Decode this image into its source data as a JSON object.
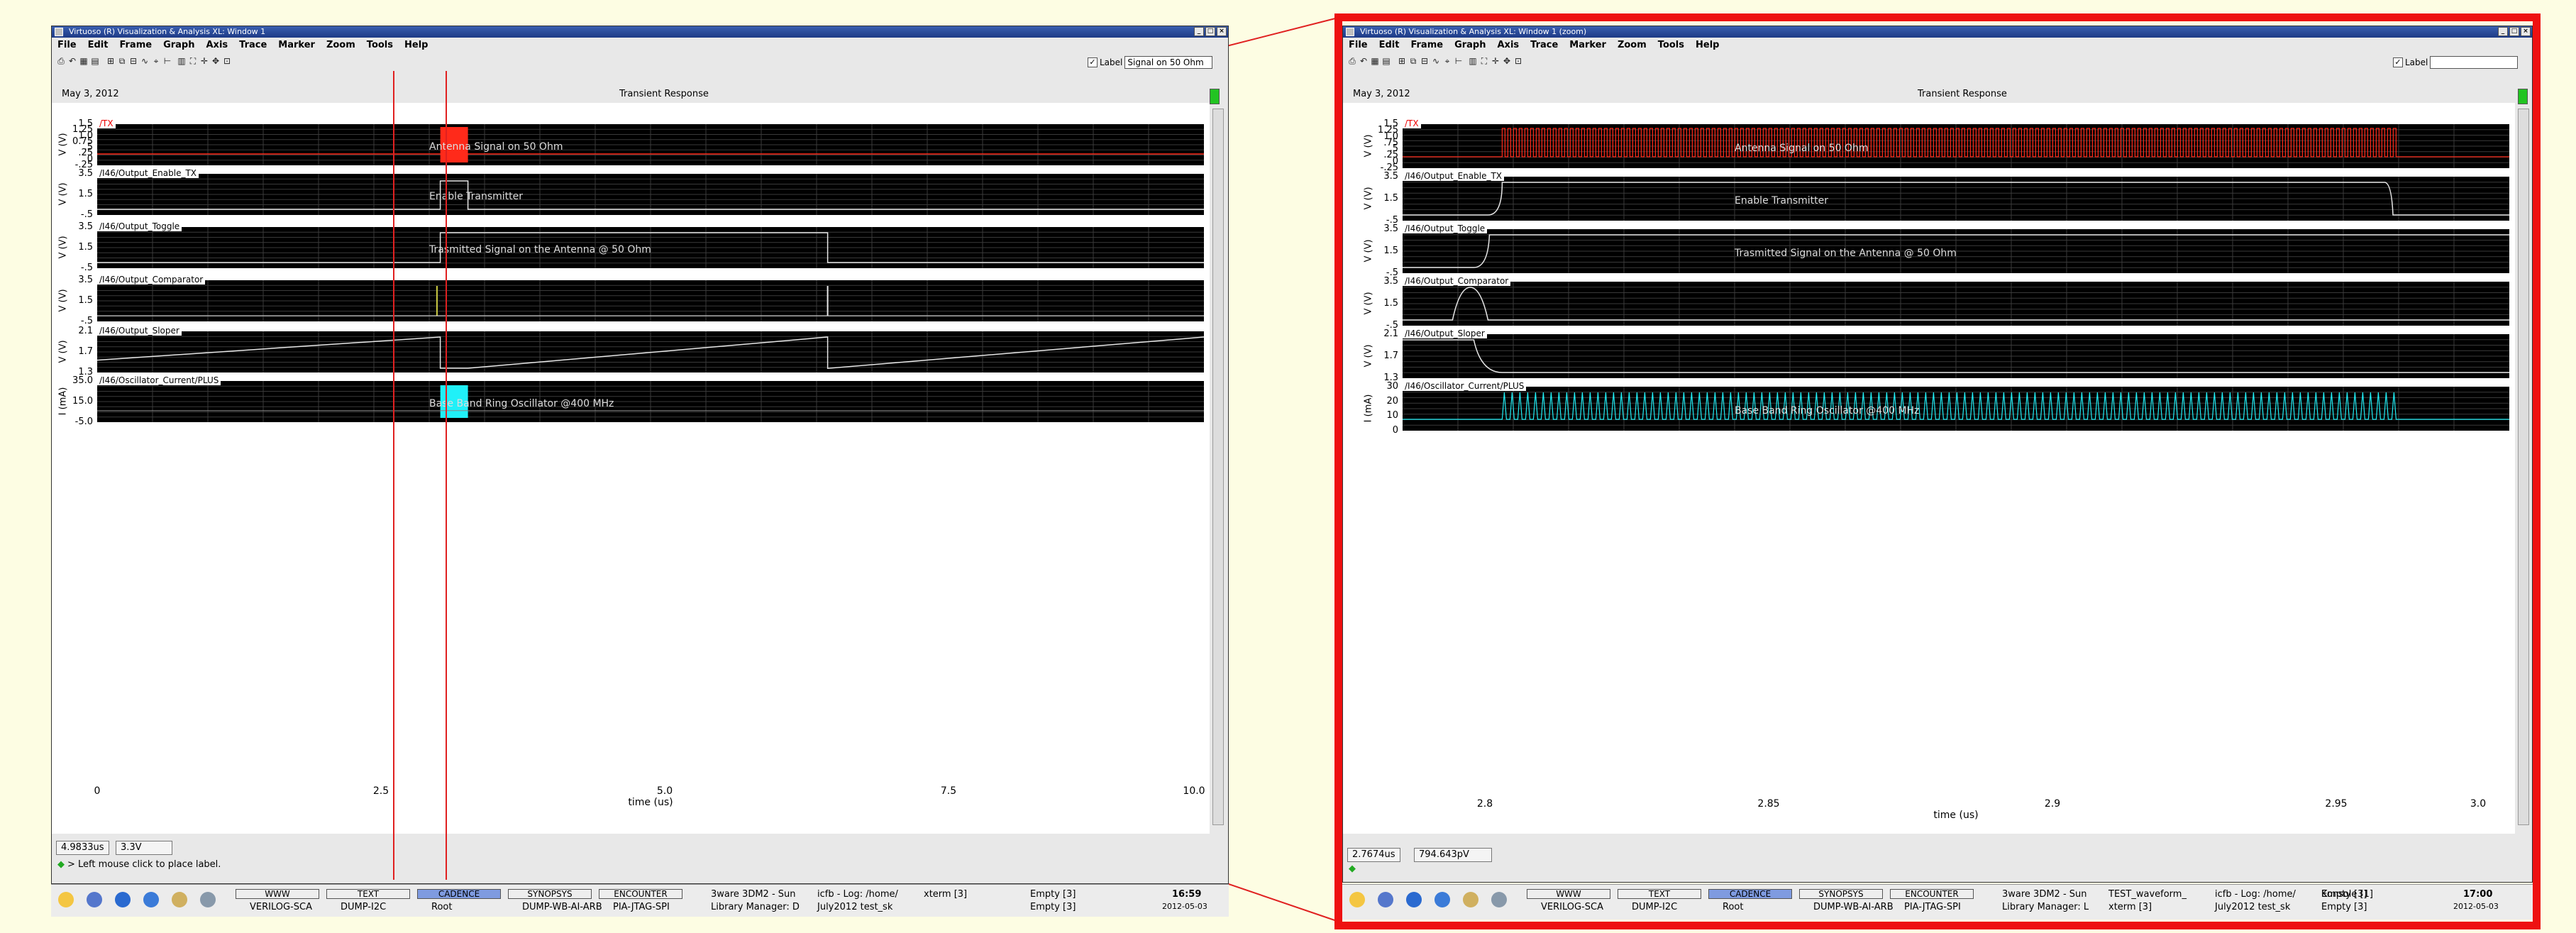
{
  "colors": {
    "page_bg": "#fdfde3",
    "red_frame": "#ee1111",
    "plot_bg": "#000000",
    "antenna": "#ff2a1a",
    "osc": "#20f0f8",
    "trace_white": "#e8e8e8"
  },
  "windows": [
    {
      "title": "Virtuoso (R) Visualization & Analysis XL: Window 1",
      "menu": [
        "File",
        "Edit",
        "Frame",
        "Graph",
        "Axis",
        "Trace",
        "Marker",
        "Zoom",
        "Tools",
        "Help"
      ],
      "label_option": "Label",
      "label_value": "Signal on 50 Ohm",
      "date": "May 3, 2012",
      "plot_title": "Transient Response",
      "panels": [
        {
          "tag": "/TX",
          "y_ticks": [
            "1.5",
            "1.25",
            "1.0",
            "0.75",
            ".5",
            ".25",
            "0",
            "-.25"
          ],
          "y_label": "V (V)",
          "annotation": "Antenna Signal on 50 Ohm"
        },
        {
          "tag": "/I46/Output_Enable_TX",
          "y_ticks": [
            "3.5",
            "1.5",
            "-.5"
          ],
          "y_label": "V (V)",
          "annotation": "Enable Transmitter"
        },
        {
          "tag": "/I46/Output_Toggle",
          "y_ticks": [
            "3.5",
            "1.5",
            "-.5"
          ],
          "y_label": "V (V)",
          "annotation": "Trasmitted Signal on the Antenna @ 50 Ohm"
        },
        {
          "tag": "/I46/Output_Comparator",
          "y_ticks": [
            "3.5",
            "1.5",
            "-.5"
          ],
          "y_label": "V (V)",
          "annotation": ""
        },
        {
          "tag": "/I46/Output_Sloper",
          "y_ticks": [
            "2.1",
            "1.7",
            "1.3"
          ],
          "y_label": "V (V)",
          "annotation": ""
        },
        {
          "tag": "/I46/Oscillator_Current/PLUS",
          "y_ticks": [
            "35.0",
            "15.0",
            "-5.0"
          ],
          "y_label": "I (mA)",
          "annotation": "Base Band Ring Oscillator @400 MHz"
        }
      ],
      "x_ticks": [
        "0",
        "2.5",
        "5.0",
        "7.5",
        "10.0"
      ],
      "x_label": "time (us)",
      "readout_x": "4.9833us",
      "readout_y": "3.3V",
      "status": "> Left mouse click to place label."
    },
    {
      "title": "Virtuoso (R) Visualization & Analysis XL: Window 1 (zoom)",
      "menu": [
        "File",
        "Edit",
        "Frame",
        "Graph",
        "Axis",
        "Trace",
        "Marker",
        "Zoom",
        "Tools",
        "Help"
      ],
      "label_option": "Label",
      "label_value": "",
      "date": "May 3, 2012",
      "plot_title": "Transient Response",
      "panels": [
        {
          "tag": "/TX",
          "y_ticks": [
            "1.5",
            "1.25",
            "1.0",
            ".75",
            ".5",
            ".25",
            "0",
            "-.25"
          ],
          "y_label": "V (V)",
          "annotation": "Antenna Signal on 50 Ohm"
        },
        {
          "tag": "/I46/Output_Enable_TX",
          "y_ticks": [
            "3.5",
            "1.5",
            "-.5"
          ],
          "y_label": "V (V)",
          "annotation": "Enable Transmitter"
        },
        {
          "tag": "/I46/Output_Toggle",
          "y_ticks": [
            "3.5",
            "1.5",
            "-.5"
          ],
          "y_label": "V (V)",
          "annotation": "Trasmitted Signal on the Antenna @ 50 Ohm"
        },
        {
          "tag": "/I46/Output_Comparator",
          "y_ticks": [
            "3.5",
            "1.5",
            "-.5"
          ],
          "y_label": "V (V)",
          "annotation": ""
        },
        {
          "tag": "/I46/Output_Sloper",
          "y_ticks": [
            "2.1",
            "1.7",
            "1.3"
          ],
          "y_label": "V (V)",
          "annotation": ""
        },
        {
          "tag": "/I46/Oscillator_Current/PLUS",
          "y_ticks": [
            "30",
            "20",
            "10",
            "0"
          ],
          "y_label": "I (mA)",
          "annotation": "Base Band Ring Oscillator @400 MHz"
        }
      ],
      "x_ticks": [
        "2.8",
        "2.85",
        "2.9",
        "2.95",
        "3.0"
      ],
      "x_label": "time (us)",
      "readout_x": "2.7674us",
      "readout_y": "794.643pV",
      "status": ""
    }
  ],
  "taskbars": [
    {
      "buttons": [
        "WWW",
        "TEXT",
        "CADENCE",
        "SYNOPSYS",
        "ENCOUNTER"
      ],
      "sub": [
        "VERILOG-SCA",
        "DUMP-I2C",
        "Root",
        "DUMP-WB-AI-ARB",
        "PIA-JTAG-SPI"
      ],
      "tasks": [
        "3ware 3DM2 - Sun",
        "Library Manager: D",
        "icfb - Log: /home/",
        "July2012 test_sk",
        "xterm [3]"
      ],
      "empty": [
        "Empty [3]",
        "Empty [3]"
      ],
      "time": "16:59",
      "date": "2012-05-03"
    },
    {
      "buttons": [
        "WWW",
        "TEXT",
        "CADENCE",
        "SYNOPSYS",
        "ENCOUNTER"
      ],
      "sub": [
        "VERILOG-SCA",
        "DUMP-I2C",
        "Root",
        "DUMP-WB-AI-ARB",
        "PIA-JTAG-SPI"
      ],
      "tasks": [
        "3ware 3DM2 - Sun",
        "Library Manager: L",
        "TEST_waveform_",
        "xterm [3]",
        "icfb - Log: /home/",
        "July2012 test_sk",
        "Konsole [1]"
      ],
      "empty": [
        "Empty [3]",
        "Empty [3]"
      ],
      "time": "17:00",
      "date": "2012-05-03"
    }
  ]
}
